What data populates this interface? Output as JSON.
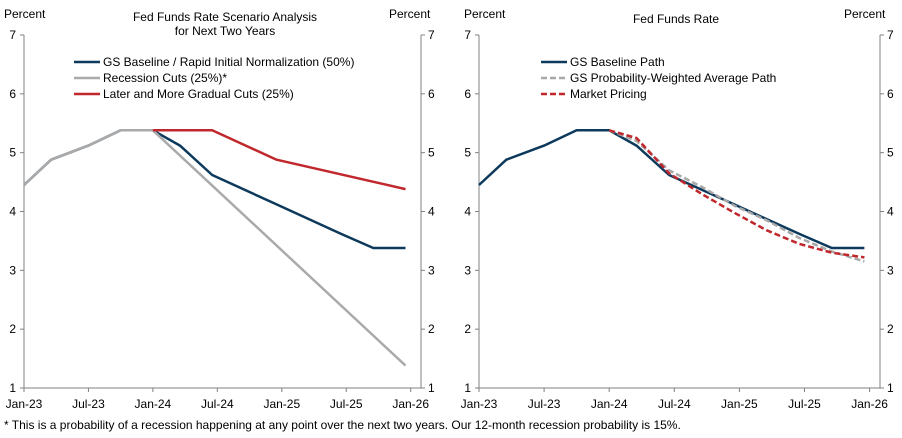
{
  "footnote": "* This is a probability of a recession happening at any point over the next two years.  Our 12-month recession probability is 15%.",
  "chart_data": [
    {
      "type": "line",
      "title_lines": [
        "Fed Funds Rate Scenario Analysis",
        "for Next Two Years"
      ],
      "left_axis_label": "Percent",
      "right_axis_label": "Percent",
      "ylim": [
        1,
        7
      ],
      "yticks": [
        1,
        2,
        3,
        4,
        5,
        6,
        7
      ],
      "xlim": [
        2023.0,
        2026.08
      ],
      "xticks": [
        {
          "label": "Jan-23",
          "x": 2023.0
        },
        {
          "label": "Jul-23",
          "x": 2023.5
        },
        {
          "label": "Jan-24",
          "x": 2024.0
        },
        {
          "label": "Jul-24",
          "x": 2024.5
        },
        {
          "label": "Jan-25",
          "x": 2025.0
        },
        {
          "label": "Jul-25",
          "x": 2025.5
        },
        {
          "label": "Jan-26",
          "x": 2026.0
        }
      ],
      "series": [
        {
          "name": "GS Baseline / Rapid Initial Normalization (50%)",
          "color": "#0d3a5c",
          "dash": "solid",
          "x": [
            2023.0,
            2023.21,
            2023.5,
            2023.75,
            2024.0,
            2024.21,
            2024.46,
            2024.96,
            2025.46,
            2025.71,
            2025.96
          ],
          "y": [
            4.45,
            4.88,
            5.12,
            5.38,
            5.38,
            5.12,
            4.62,
            4.12,
            3.62,
            3.38,
            3.38
          ]
        },
        {
          "name": "Recession Cuts (25%)*",
          "color": "#aaaaaa",
          "dash": "solid",
          "x": [
            2023.0,
            2023.21,
            2023.5,
            2023.75,
            2024.0,
            2025.96
          ],
          "y": [
            4.45,
            4.88,
            5.12,
            5.38,
            5.38,
            1.38
          ]
        },
        {
          "name": "Later and More Gradual Cuts (25%)",
          "color": "#c0282d",
          "dash": "solid",
          "x": [
            2024.0,
            2024.46,
            2024.96,
            2025.96
          ],
          "y": [
            5.38,
            5.38,
            4.88,
            4.38
          ]
        }
      ]
    },
    {
      "type": "line",
      "title_lines": [
        "Fed Funds Rate"
      ],
      "left_axis_label": "Percent",
      "right_axis_label": "Percent",
      "ylim": [
        1,
        7
      ],
      "yticks": [
        1,
        2,
        3,
        4,
        5,
        6,
        7
      ],
      "xlim": [
        2023.0,
        2026.08
      ],
      "xticks": [
        {
          "label": "Jan-23",
          "x": 2023.0
        },
        {
          "label": "Jul-23",
          "x": 2023.5
        },
        {
          "label": "Jan-24",
          "x": 2024.0
        },
        {
          "label": "Jul-24",
          "x": 2024.5
        },
        {
          "label": "Jan-25",
          "x": 2025.0
        },
        {
          "label": "Jul-25",
          "x": 2025.5
        },
        {
          "label": "Jan-26",
          "x": 2026.0
        }
      ],
      "series": [
        {
          "name": "GS Baseline Path",
          "color": "#0d3a5c",
          "dash": "solid",
          "x": [
            2023.0,
            2023.21,
            2023.5,
            2023.75,
            2024.0,
            2024.21,
            2024.46,
            2024.96,
            2025.46,
            2025.71,
            2025.96
          ],
          "y": [
            4.45,
            4.88,
            5.12,
            5.38,
            5.38,
            5.12,
            4.62,
            4.12,
            3.62,
            3.38,
            3.38
          ]
        },
        {
          "name": "GS Probability-Weighted Average Path",
          "color": "#a8a8a8",
          "dash": "dashed",
          "x": [
            2024.0,
            2024.21,
            2024.46,
            2024.71,
            2024.96,
            2025.21,
            2025.46,
            2025.71,
            2025.96
          ],
          "y": [
            5.38,
            5.2,
            4.7,
            4.42,
            4.1,
            3.85,
            3.55,
            3.32,
            3.15
          ]
        },
        {
          "name": "Market Pricing",
          "color": "#c0282d",
          "dash": "dashed",
          "x": [
            2024.0,
            2024.21,
            2024.46,
            2024.71,
            2024.96,
            2025.21,
            2025.46,
            2025.71,
            2025.96
          ],
          "y": [
            5.38,
            5.25,
            4.65,
            4.3,
            3.98,
            3.68,
            3.45,
            3.3,
            3.22
          ]
        }
      ]
    }
  ]
}
